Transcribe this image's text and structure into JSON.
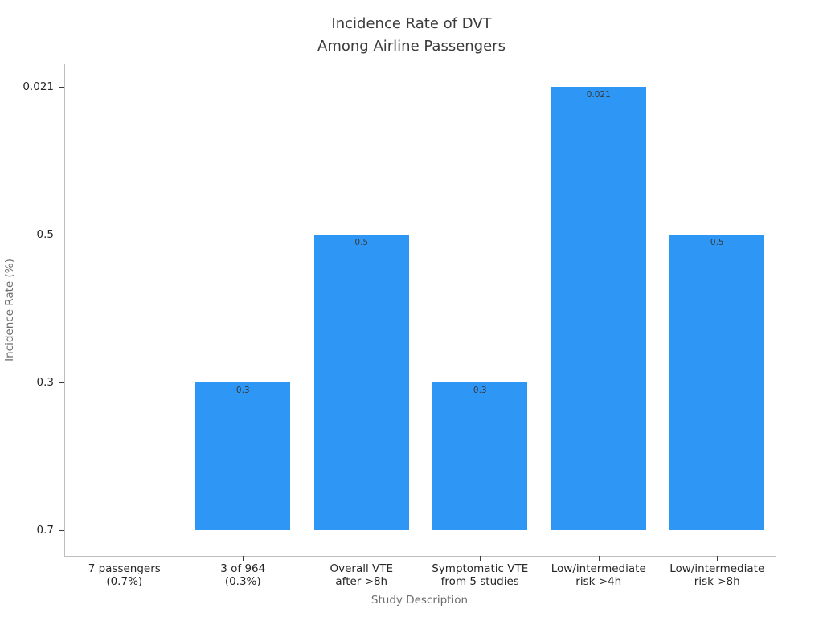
{
  "chart_data": {
    "type": "bar",
    "title": "Incidence Rate of DVT\nAmong Airline Passengers",
    "xlabel": "Study Description",
    "ylabel": "Incidence Rate (%)",
    "categories": [
      "7 passengers\n(0.7%)",
      "3 of 964\n(0.3%)",
      "Overall VTE\nafter >8h",
      "Symptomatic VTE\nfrom 5 studies",
      "Low/intermediate\nrisk >4h",
      "Low/intermediate\nrisk >8h"
    ],
    "values": [
      "0.7",
      "0.3",
      "0.5",
      "0.3",
      "0.021",
      "0.5"
    ],
    "bar_value_labels": [
      null,
      "0.3",
      "0.5",
      "0.3",
      "0.021",
      "0.5"
    ],
    "y_axis_type": "categorical",
    "y_ticks_bottom_to_top": [
      "0.7",
      "0.3",
      "0.5",
      "0.021"
    ],
    "grid": false,
    "legend": null,
    "bar_color": "#2E96F5",
    "note": "Y axis treats the incidence values as categories in order of first appearance; the '7 passengers (0.7%)' bar sits at the baseline with zero height."
  },
  "colors": {
    "bar": "#2E96F5",
    "title": "#3B3B3B",
    "tick_label": "#262626",
    "axis_label": "#6E6E6E",
    "spine": "#BDBDBD",
    "tick_mark": "#3A3A3A",
    "bar_value_label": "#3A3A3A"
  }
}
